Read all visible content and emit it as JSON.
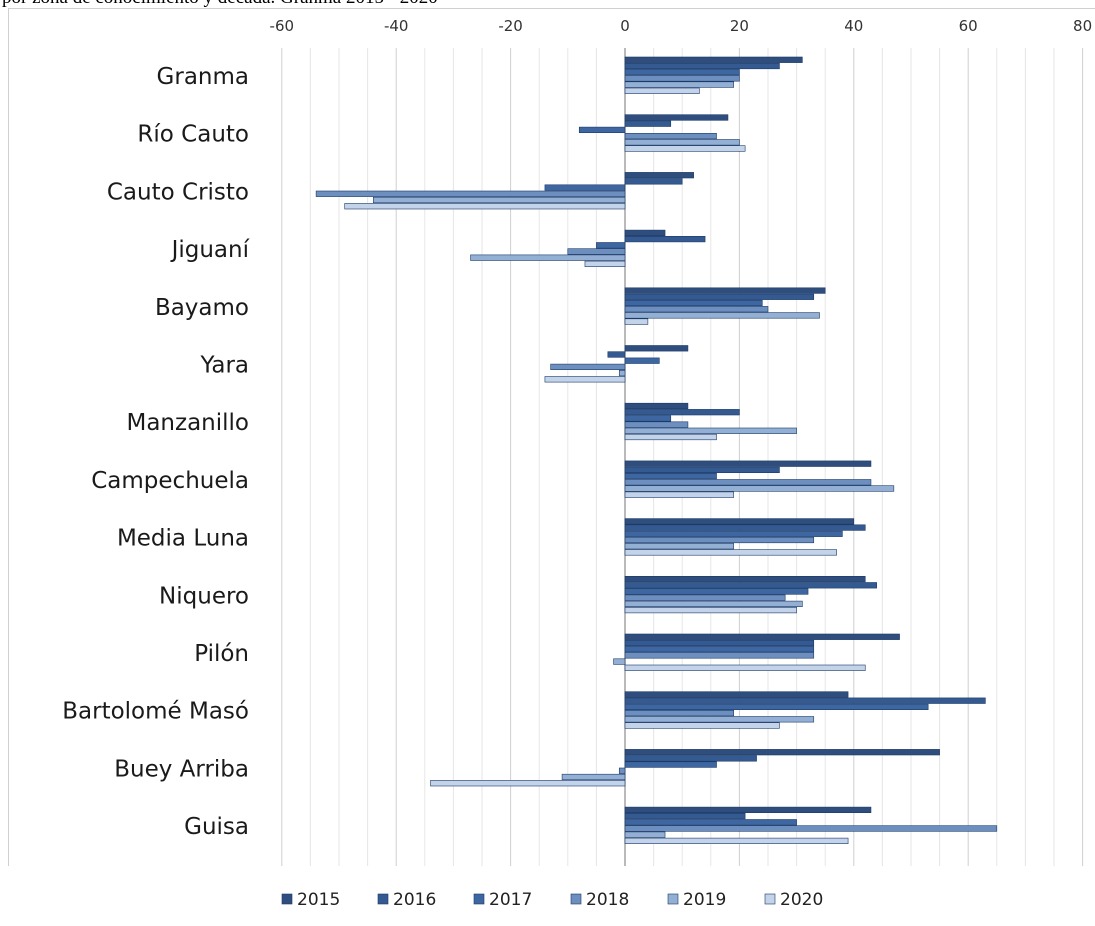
{
  "chart_data": {
    "type": "bar",
    "orientation": "horizontal",
    "title": "por zona de conocimiento y década. Granma 2015 - 2020",
    "xlabel": "",
    "ylabel": "",
    "xlim": [
      -60,
      80
    ],
    "x_ticks": [
      "-60",
      "-40",
      "-20",
      "0",
      "20",
      "40",
      "60",
      "80"
    ],
    "x_tick_values": [
      -60,
      -40,
      -20,
      0,
      20,
      40,
      60,
      80
    ],
    "grid": true,
    "legend_position": "bottom",
    "categories": [
      "Granma",
      "Río Cauto",
      "Cauto Cristo",
      "Jiguaní",
      "Bayamo",
      "Yara",
      "Manzanillo",
      "Campechuela",
      "Media Luna",
      "Niquero",
      "Pilón",
      "Bartolomé Masó",
      "Buey Arriba",
      "Guisa"
    ],
    "series": [
      {
        "name": "2015",
        "color": "#2f4e7d",
        "values": [
          31,
          18,
          12,
          7,
          35,
          11,
          11,
          43,
          40,
          42,
          48,
          39,
          55,
          43
        ]
      },
      {
        "name": "2016",
        "color": "#345a91",
        "values": [
          27,
          8,
          10,
          14,
          33,
          -3,
          20,
          27,
          42,
          44,
          33,
          63,
          23,
          21
        ]
      },
      {
        "name": "2017",
        "color": "#3e67a2",
        "values": [
          20,
          -8,
          -14,
          -5,
          24,
          6,
          8,
          16,
          38,
          32,
          33,
          53,
          16,
          30
        ]
      },
      {
        "name": "2018",
        "color": "#6d8fbf",
        "values": [
          20,
          16,
          -54,
          -10,
          25,
          -13,
          11,
          43,
          33,
          28,
          33,
          19,
          -1,
          65
        ]
      },
      {
        "name": "2019",
        "color": "#93afd4",
        "values": [
          19,
          20,
          -44,
          -27,
          34,
          -1,
          30,
          47,
          19,
          31,
          -2,
          33,
          -11,
          7
        ]
      },
      {
        "name": "2020",
        "color": "#c3d3ea",
        "values": [
          13,
          21,
          -49,
          -7,
          4,
          -14,
          16,
          19,
          37,
          30,
          42,
          27,
          -34,
          39
        ]
      }
    ]
  }
}
